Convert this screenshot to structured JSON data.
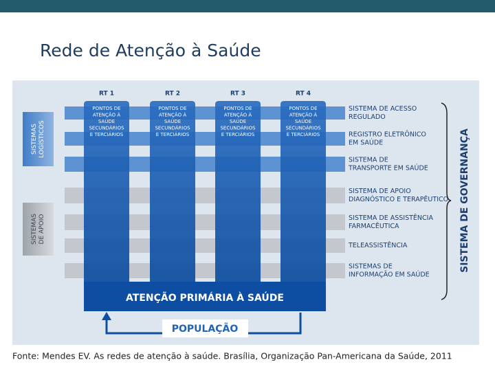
{
  "header": {
    "title": "Rede de Atenção à Saúde"
  },
  "diagram": {
    "columns": [
      {
        "label": "RT 1",
        "lines": [
          "PONTOS DE",
          "ATENÇÃO À",
          "SAÚDE",
          "SECUNDÁRIOS",
          "E TERCIÁRIOS"
        ]
      },
      {
        "label": "RT 2",
        "lines": [
          "PONTOS DE",
          "ATENÇÃO À",
          "SAÚDE",
          "SECUNDÁRIOS",
          "E TERCIÁRIOS"
        ]
      },
      {
        "label": "RT 3",
        "lines": [
          "PONTOS DE",
          "ATENÇÃO À",
          "SAÚDE",
          "SECUNDÁRIOS",
          "E TERCIÁRIOS"
        ]
      },
      {
        "label": "RT 4",
        "lines": [
          "PONTOS DE",
          "ATENÇÃO À",
          "SAÚDE",
          "SECUNDÁRIOS",
          "E TERCIÁRIOS"
        ]
      }
    ],
    "left_groups": [
      {
        "lines": [
          "SISTEMAS",
          "LOGÍSTICOS"
        ]
      },
      {
        "lines": [
          "SISTEMAS",
          "DE APOIO"
        ]
      }
    ],
    "systems": [
      {
        "lines": [
          "SISTEMA DE ACESSO",
          "REGULADO"
        ]
      },
      {
        "lines": [
          "REGISTRO ELETRÔNICO",
          "EM SAÚDE"
        ]
      },
      {
        "lines": [
          "SISTEMA DE",
          "TRANSPORTE EM SAÚDE"
        ]
      },
      {
        "lines": [
          "SISTEMA DE APOIO",
          "DIAGNÓSTICO E TERAPÊUTICO"
        ]
      },
      {
        "lines": [
          "SISTEMA DE ASSISTÊNCIA",
          "FARMACÊUTICA"
        ]
      },
      {
        "lines": [
          "TELEASSISTÊNCIA"
        ]
      },
      {
        "lines": [
          "SISTEMAS DE",
          "INFORMAÇÃO EM SAÚDE"
        ]
      }
    ],
    "governance": "SISTEMA DE GOVERNANÇA",
    "base": "ATENÇÃO PRIMÁRIA À SAÚDE",
    "population": "POPULAÇÃO"
  },
  "source": "Fonte: Mendes EV. As redes de atenção à saúde. Brasília, Organização Pan-Americana da Saúde, 2011"
}
